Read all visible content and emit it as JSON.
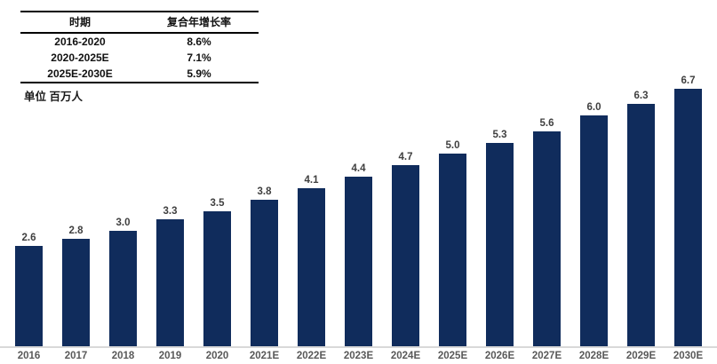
{
  "cagr_table": {
    "headers": {
      "period": "时期",
      "cagr": "复合年增长率"
    },
    "rows": [
      {
        "period": "2016-2020",
        "cagr": "8.6%"
      },
      {
        "period": "2020-2025E",
        "cagr": "7.1%"
      },
      {
        "period": "2025E-2030E",
        "cagr": "5.9%"
      }
    ]
  },
  "unit_label": "单位 百万人",
  "chart_data": {
    "type": "bar",
    "categories": [
      "2016",
      "2017",
      "2018",
      "2019",
      "2020",
      "2021E",
      "2022E",
      "2023E",
      "2024E",
      "2025E",
      "2026E",
      "2027E",
      "2028E",
      "2029E",
      "2030E"
    ],
    "values": [
      2.6,
      2.8,
      3.0,
      3.3,
      3.5,
      3.8,
      4.1,
      4.4,
      4.7,
      5.0,
      5.3,
      5.6,
      6.0,
      6.3,
      6.7
    ],
    "value_labels": [
      "2.6",
      "2.8",
      "3.0",
      "3.3",
      "3.5",
      "3.8",
      "4.1",
      "4.4",
      "4.7",
      "5.0",
      "5.3",
      "5.6",
      "6.0",
      "6.3",
      "6.7"
    ],
    "title": "",
    "xlabel": "",
    "ylabel": "单位 百万人",
    "ylim": [
      0,
      7
    ],
    "legend": "none",
    "gridlines": false,
    "data_labels": true,
    "colors": {
      "bar": "#102C5C",
      "value_label": "#3F3F3F",
      "axis_label": "#595959",
      "baseline": "#D9D9D9",
      "table_border": "#000000"
    }
  }
}
